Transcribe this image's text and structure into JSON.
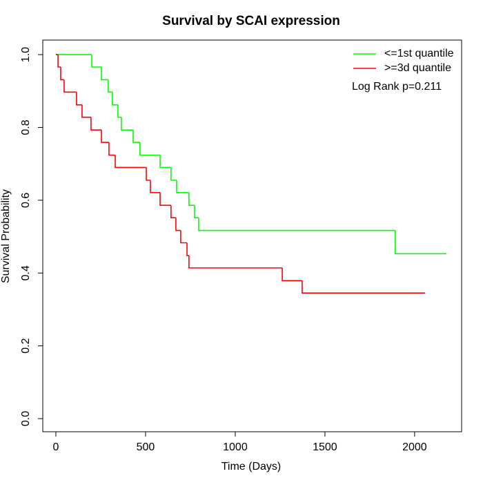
{
  "chart_data": {
    "type": "step",
    "title": "Survival by SCAI expression",
    "x_label": "Time (Days)",
    "y_label": "Survival Probability",
    "annotation": "Log Rank p=0.211",
    "xlim": [
      -73,
      2262
    ],
    "ylim": [
      -0.036,
      1.04
    ],
    "xticks": [
      0,
      500,
      1000,
      1500,
      2000
    ],
    "yticks": [
      {
        "value": 0,
        "label": "0.0"
      },
      {
        "value": 0.2,
        "label": "0.2"
      },
      {
        "value": 0.4,
        "label": "0.4"
      },
      {
        "value": 0.6,
        "label": "0.6"
      },
      {
        "value": 0.8,
        "label": "0.8"
      },
      {
        "value": 1,
        "label": "1.0"
      }
    ],
    "legend": "top-right",
    "series": [
      {
        "name": "<=1st quantile",
        "color": "#00ff00",
        "x": [
          0,
          200,
          254,
          292,
          315,
          346,
          365,
          431,
          469,
          581,
          642,
          673,
          742,
          773,
          796,
          1892,
          2177
        ],
        "values": [
          1.0,
          0.966,
          0.931,
          0.897,
          0.862,
          0.828,
          0.793,
          0.759,
          0.724,
          0.69,
          0.655,
          0.621,
          0.586,
          0.552,
          0.517,
          0.453,
          0.453
        ]
      },
      {
        "name": ">=3d quantile",
        "color": "#ff0000",
        "x": [
          0,
          12,
          27,
          46,
          115,
          146,
          196,
          254,
          296,
          331,
          504,
          527,
          581,
          642,
          669,
          696,
          731,
          742,
          1262,
          1373,
          2058
        ],
        "values": [
          1.0,
          0.966,
          0.931,
          0.897,
          0.862,
          0.828,
          0.793,
          0.759,
          0.724,
          0.69,
          0.655,
          0.621,
          0.586,
          0.552,
          0.517,
          0.483,
          0.448,
          0.414,
          0.379,
          0.345,
          0.345
        ]
      }
    ]
  }
}
